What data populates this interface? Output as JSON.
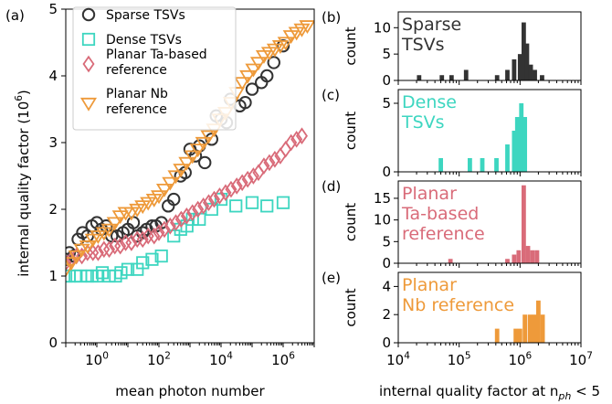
{
  "chart_data": [
    {
      "panel": "(a)",
      "type": "scatter",
      "xlabel": "mean photon number",
      "ylabel": "internal quality factor (10^6)",
      "ylabel_main": "internal quality factor (10",
      "ylabel_exp": "6",
      "ylabel_close": ")",
      "xscale": "log",
      "xlim": [
        0.1,
        10000000
      ],
      "ylim": [
        0,
        5
      ],
      "xticks": [
        {
          "value": 1,
          "base": "10",
          "exp": "0"
        },
        {
          "value": 100,
          "base": "10",
          "exp": "2"
        },
        {
          "value": 10000,
          "base": "10",
          "exp": "4"
        },
        {
          "value": 1000000,
          "base": "10",
          "exp": "6"
        }
      ],
      "yticks": [
        "0",
        "1",
        "2",
        "3",
        "4",
        "5"
      ],
      "legend_position": "top-left",
      "series": [
        {
          "name": "Sparse TSVs",
          "marker": "circle",
          "color": "#333333",
          "points": [
            [
              0.1,
              1.25
            ],
            [
              0.13,
              1.35
            ],
            [
              0.18,
              1.3
            ],
            [
              0.25,
              1.55
            ],
            [
              0.35,
              1.65
            ],
            [
              0.5,
              1.6
            ],
            [
              0.7,
              1.75
            ],
            [
              1,
              1.8
            ],
            [
              1.4,
              1.7
            ],
            [
              2,
              1.75
            ],
            [
              3,
              1.6
            ],
            [
              4.5,
              1.6
            ],
            [
              7,
              1.65
            ],
            [
              10,
              1.7
            ],
            [
              15,
              1.8
            ],
            [
              20,
              1.6
            ],
            [
              30,
              1.65
            ],
            [
              40,
              1.7
            ],
            [
              60,
              1.75
            ],
            [
              80,
              1.75
            ],
            [
              120,
              1.8
            ],
            [
              200,
              2.05
            ],
            [
              300,
              2.15
            ],
            [
              500,
              2.5
            ],
            [
              700,
              2.55
            ],
            [
              1000,
              2.9
            ],
            [
              1500,
              2.8
            ],
            [
              2000,
              2.95
            ],
            [
              3000,
              2.7
            ],
            [
              5000,
              3.05
            ],
            [
              7000,
              3.4
            ],
            [
              10000,
              3.35
            ],
            [
              15000,
              3.3
            ],
            [
              20000,
              3.65
            ],
            [
              40000,
              3.55
            ],
            [
              60000,
              3.6
            ],
            [
              100000,
              3.8
            ],
            [
              200000,
              3.9
            ],
            [
              300000,
              4.0
            ],
            [
              500000,
              4.2
            ],
            [
              1000000,
              4.45
            ]
          ]
        },
        {
          "name": "Dense TSVs",
          "marker": "square",
          "color": "#3dd6c0",
          "points": [
            [
              0.1,
              1.0
            ],
            [
              0.13,
              1.0
            ],
            [
              0.2,
              1.0
            ],
            [
              0.3,
              1.0
            ],
            [
              0.5,
              1.0
            ],
            [
              0.7,
              1.0
            ],
            [
              1,
              1.0
            ],
            [
              1.5,
              1.05
            ],
            [
              2.5,
              1.0
            ],
            [
              4,
              1.0
            ],
            [
              6,
              1.05
            ],
            [
              10,
              1.1
            ],
            [
              20,
              1.1
            ],
            [
              30,
              1.2
            ],
            [
              60,
              1.25
            ],
            [
              120,
              1.3
            ],
            [
              300,
              1.6
            ],
            [
              500,
              1.7
            ],
            [
              800,
              1.75
            ],
            [
              1200,
              1.85
            ],
            [
              2000,
              1.85
            ],
            [
              5000,
              2.0
            ],
            [
              10000,
              2.15
            ],
            [
              30000,
              2.05
            ],
            [
              100000,
              2.1
            ],
            [
              300000,
              2.05
            ],
            [
              1000000,
              2.1
            ]
          ]
        },
        {
          "name": "Planar Ta-based reference",
          "marker": "diamond",
          "color": "#d96b79",
          "points": [
            [
              0.1,
              1.2
            ],
            [
              0.15,
              1.25
            ],
            [
              0.22,
              1.3
            ],
            [
              0.33,
              1.3
            ],
            [
              0.5,
              1.35
            ],
            [
              0.75,
              1.35
            ],
            [
              1.1,
              1.35
            ],
            [
              1.7,
              1.4
            ],
            [
              2.5,
              1.4
            ],
            [
              3.8,
              1.45
            ],
            [
              5.7,
              1.45
            ],
            [
              8.5,
              1.5
            ],
            [
              13,
              1.5
            ],
            [
              20,
              1.55
            ],
            [
              30,
              1.55
            ],
            [
              45,
              1.6
            ],
            [
              70,
              1.6
            ],
            [
              100,
              1.65
            ],
            [
              150,
              1.7
            ],
            [
              230,
              1.75
            ],
            [
              350,
              1.8
            ],
            [
              520,
              1.85
            ],
            [
              780,
              1.9
            ],
            [
              1200,
              1.95
            ],
            [
              1800,
              2.0
            ],
            [
              2700,
              2.05
            ],
            [
              4000,
              2.1
            ],
            [
              6000,
              2.15
            ],
            [
              9000,
              2.2
            ],
            [
              14000,
              2.25
            ],
            [
              21000,
              2.3
            ],
            [
              32000,
              2.35
            ],
            [
              48000,
              2.4
            ],
            [
              72000,
              2.45
            ],
            [
              110000,
              2.5
            ],
            [
              160000,
              2.55
            ],
            [
              240000,
              2.65
            ],
            [
              360000,
              2.7
            ],
            [
              540000,
              2.75
            ],
            [
              810000,
              2.8
            ],
            [
              1200000,
              2.9
            ],
            [
              1800000,
              3.0
            ],
            [
              2700000,
              3.05
            ],
            [
              4000000,
              3.1
            ]
          ]
        },
        {
          "name": "Planar Nb reference",
          "marker": "triangle-down",
          "color": "#ee9a3a",
          "points": [
            [
              0.1,
              1.1
            ],
            [
              0.15,
              1.2
            ],
            [
              0.22,
              1.3
            ],
            [
              0.33,
              1.4
            ],
            [
              0.5,
              1.45
            ],
            [
              0.75,
              1.55
            ],
            [
              1.1,
              1.6
            ],
            [
              1.7,
              1.65
            ],
            [
              2.5,
              1.7
            ],
            [
              3.8,
              1.8
            ],
            [
              5.7,
              1.9
            ],
            [
              8.5,
              1.95
            ],
            [
              13,
              1.95
            ],
            [
              20,
              2.0
            ],
            [
              30,
              2.05
            ],
            [
              45,
              2.1
            ],
            [
              70,
              2.15
            ],
            [
              100,
              2.2
            ],
            [
              150,
              2.3
            ],
            [
              230,
              2.4
            ],
            [
              350,
              2.5
            ],
            [
              520,
              2.6
            ],
            [
              780,
              2.7
            ],
            [
              1200,
              2.8
            ],
            [
              1800,
              2.9
            ],
            [
              2700,
              3.0
            ],
            [
              4000,
              3.1
            ],
            [
              6000,
              3.2
            ],
            [
              9000,
              3.35
            ],
            [
              14000,
              3.45
            ],
            [
              21000,
              3.6
            ],
            [
              32000,
              3.75
            ],
            [
              48000,
              3.9
            ],
            [
              72000,
              4.0
            ],
            [
              110000,
              4.1
            ],
            [
              160000,
              4.2
            ],
            [
              240000,
              4.3
            ],
            [
              360000,
              4.35
            ],
            [
              540000,
              4.4
            ],
            [
              810000,
              4.45
            ],
            [
              1200000,
              4.5
            ],
            [
              1800000,
              4.6
            ],
            [
              2700000,
              4.65
            ],
            [
              4000000,
              4.7
            ],
            [
              6000000,
              4.75
            ]
          ]
        }
      ]
    },
    {
      "panel": "(b)",
      "type": "bar",
      "label_lines": [
        "Sparse",
        "TSVs"
      ],
      "color": "#333333",
      "ylabel": "count",
      "xscale": "log",
      "xlim": [
        10000,
        10000000
      ],
      "ylim": [
        0,
        13
      ],
      "yticks": [
        {
          "value": 0,
          "label": "0"
        },
        {
          "value": 5,
          "label": "5"
        },
        {
          "value": 10,
          "label": "10"
        }
      ],
      "bins": [
        [
          22000,
          1
        ],
        [
          52000,
          1
        ],
        [
          75000,
          1
        ],
        [
          130000,
          2
        ],
        [
          420000,
          1
        ],
        [
          620000,
          2
        ],
        [
          800000,
          4
        ],
        [
          1000000,
          5
        ],
        [
          1150000,
          11
        ],
        [
          1300000,
          7
        ],
        [
          1500000,
          3
        ],
        [
          1750000,
          2
        ],
        [
          2300000,
          1
        ]
      ]
    },
    {
      "panel": "(c)",
      "type": "bar",
      "label_lines": [
        "Dense",
        "TSVs"
      ],
      "color": "#3dd6c0",
      "ylabel": "count",
      "xscale": "log",
      "xlim": [
        10000,
        10000000
      ],
      "ylim": [
        0,
        6
      ],
      "yticks": [
        {
          "value": 0,
          "label": "0"
        },
        {
          "value": 5,
          "label": "5"
        }
      ],
      "bins": [
        [
          50000,
          1
        ],
        [
          150000,
          1
        ],
        [
          240000,
          1
        ],
        [
          410000,
          1
        ],
        [
          620000,
          2
        ],
        [
          800000,
          3
        ],
        [
          900000,
          4
        ],
        [
          1050000,
          5
        ],
        [
          1200000,
          4
        ]
      ]
    },
    {
      "panel": "(d)",
      "type": "bar",
      "label_lines": [
        "Planar",
        "Ta-based",
        "reference"
      ],
      "color": "#d96b79",
      "ylabel": "count",
      "xscale": "log",
      "xlim": [
        10000,
        10000000
      ],
      "ylim": [
        0,
        19
      ],
      "yticks": [
        {
          "value": 0,
          "label": "0"
        },
        {
          "value": 5,
          "label": "5"
        },
        {
          "value": 10,
          "label": "10"
        },
        {
          "value": 15,
          "label": "15"
        }
      ],
      "bins": [
        [
          72000,
          1
        ],
        [
          620000,
          1
        ],
        [
          800000,
          2
        ],
        [
          950000,
          3
        ],
        [
          1150000,
          18
        ],
        [
          1350000,
          4
        ],
        [
          1600000,
          3
        ],
        [
          1900000,
          3
        ]
      ]
    },
    {
      "panel": "(e)",
      "type": "bar",
      "label_lines": [
        "Planar",
        "Nb reference"
      ],
      "color": "#ee9a3a",
      "ylabel": "count",
      "xlabel_main": "internal quality factor at n",
      "xlabel_sub": "ph",
      "xlabel_tail": " < 5",
      "xscale": "log",
      "xlim": [
        10000,
        10000000
      ],
      "ylim": [
        0,
        5
      ],
      "yticks": [
        {
          "value": 0,
          "label": "0"
        },
        {
          "value": 2,
          "label": "2"
        },
        {
          "value": 4,
          "label": "4"
        }
      ],
      "xticks": [
        {
          "value": 10000,
          "base": "10",
          "exp": "4"
        },
        {
          "value": 100000,
          "base": "10",
          "exp": "5"
        },
        {
          "value": 1000000,
          "base": "10",
          "exp": "6"
        },
        {
          "value": 10000000,
          "base": "10",
          "exp": "7"
        }
      ],
      "bins": [
        [
          420000,
          1
        ],
        [
          850000,
          1
        ],
        [
          1000000,
          1
        ],
        [
          1200000,
          2
        ],
        [
          1450000,
          2
        ],
        [
          1700000,
          2
        ],
        [
          2000000,
          3
        ],
        [
          2350000,
          2
        ]
      ]
    }
  ]
}
